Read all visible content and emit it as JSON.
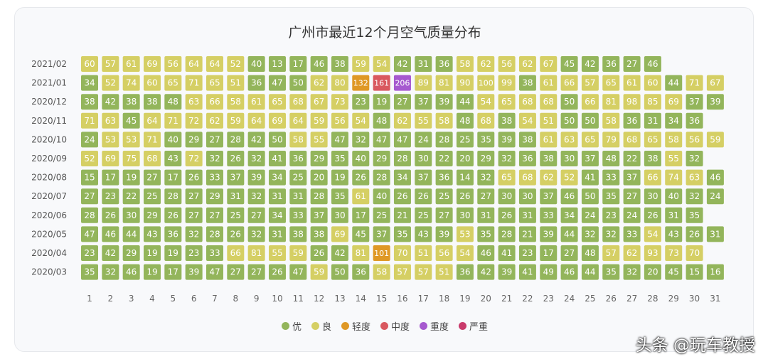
{
  "chart_data": {
    "type": "heatmap",
    "title": "广州市最近12个月空气质量分布",
    "x_days": [
      1,
      2,
      3,
      4,
      5,
      6,
      7,
      8,
      9,
      10,
      11,
      12,
      13,
      14,
      15,
      16,
      17,
      18,
      19,
      20,
      21,
      22,
      23,
      24,
      25,
      26,
      27,
      28,
      29,
      30,
      31
    ],
    "rows": [
      {
        "month": "2021/02",
        "values": [
          60,
          57,
          61,
          69,
          56,
          64,
          64,
          52,
          40,
          13,
          17,
          46,
          38,
          59,
          54,
          42,
          31,
          36,
          58,
          62,
          56,
          62,
          67,
          45,
          42,
          36,
          27,
          46
        ]
      },
      {
        "month": "2021/01",
        "values": [
          34,
          52,
          74,
          60,
          65,
          71,
          65,
          51,
          36,
          47,
          50,
          62,
          80,
          132,
          161,
          206,
          89,
          81,
          90,
          100,
          99,
          38,
          61,
          66,
          57,
          65,
          61,
          60,
          44,
          71,
          67
        ]
      },
      {
        "month": "2020/12",
        "values": [
          38,
          42,
          38,
          38,
          48,
          63,
          66,
          58,
          61,
          65,
          68,
          67,
          73,
          23,
          19,
          27,
          37,
          39,
          44,
          54,
          65,
          68,
          68,
          50,
          66,
          81,
          98,
          85,
          69,
          37,
          39
        ]
      },
      {
        "month": "2020/11",
        "values": [
          71,
          63,
          45,
          64,
          71,
          72,
          62,
          59,
          64,
          69,
          64,
          59,
          56,
          54,
          48,
          62,
          55,
          58,
          48,
          68,
          38,
          54,
          51,
          50,
          50,
          58,
          36,
          31,
          34,
          36
        ]
      },
      {
        "month": "2020/10",
        "values": [
          24,
          53,
          53,
          71,
          40,
          29,
          27,
          28,
          42,
          50,
          58,
          55,
          47,
          32,
          47,
          47,
          24,
          28,
          25,
          35,
          39,
          38,
          61,
          63,
          65,
          79,
          68,
          65,
          58,
          56,
          59
        ]
      },
      {
        "month": "2020/09",
        "values": [
          52,
          69,
          75,
          68,
          43,
          72,
          32,
          26,
          32,
          41,
          36,
          29,
          35,
          40,
          29,
          28,
          30,
          22,
          20,
          29,
          32,
          36,
          38,
          30,
          37,
          48,
          22,
          38,
          55,
          32
        ]
      },
      {
        "month": "2020/08",
        "values": [
          15,
          17,
          19,
          27,
          17,
          26,
          33,
          37,
          39,
          34,
          25,
          20,
          19,
          26,
          28,
          34,
          37,
          36,
          14,
          32,
          65,
          68,
          62,
          52,
          41,
          33,
          37,
          66,
          74,
          63,
          46
        ]
      },
      {
        "month": "2020/07",
        "values": [
          27,
          23,
          22,
          25,
          28,
          27,
          29,
          31,
          32,
          31,
          31,
          28,
          35,
          61,
          40,
          26,
          26,
          25,
          26,
          27,
          30,
          30,
          37,
          46,
          50,
          35,
          27,
          30,
          40,
          32,
          24
        ]
      },
      {
        "month": "2020/06",
        "values": [
          28,
          26,
          30,
          29,
          26,
          27,
          27,
          25,
          27,
          34,
          33,
          37,
          30,
          17,
          25,
          21,
          25,
          27,
          30,
          31,
          26,
          31,
          33,
          34,
          24,
          23,
          24,
          26,
          31,
          35
        ]
      },
      {
        "month": "2020/05",
        "values": [
          47,
          46,
          44,
          43,
          36,
          32,
          28,
          26,
          32,
          31,
          38,
          38,
          69,
          45,
          37,
          35,
          43,
          39,
          53,
          35,
          28,
          21,
          39,
          44,
          32,
          32,
          33,
          54,
          43,
          26,
          31
        ]
      },
      {
        "month": "2020/04",
        "values": [
          23,
          42,
          29,
          19,
          19,
          23,
          33,
          66,
          81,
          55,
          59,
          26,
          42,
          81,
          101,
          70,
          51,
          56,
          54,
          46,
          41,
          23,
          17,
          27,
          48,
          57,
          62,
          93,
          73,
          70
        ]
      },
      {
        "month": "2020/03",
        "values": [
          35,
          32,
          46,
          19,
          17,
          39,
          47,
          27,
          27,
          26,
          47,
          59,
          50,
          36,
          58,
          57,
          57,
          51,
          36,
          42,
          39,
          41,
          49,
          46,
          44,
          35,
          32,
          20,
          45,
          15,
          16
        ]
      }
    ],
    "legend": [
      {
        "label": "优",
        "color": "#93b55b",
        "min": 0,
        "max": 50
      },
      {
        "label": "良",
        "color": "#d5cf64",
        "min": 51,
        "max": 100
      },
      {
        "label": "轻度",
        "color": "#df9825",
        "min": 101,
        "max": 150
      },
      {
        "label": "中度",
        "color": "#d9585f",
        "min": 151,
        "max": 200
      },
      {
        "label": "重度",
        "color": "#a659cf",
        "min": 201,
        "max": 300
      },
      {
        "label": "严重",
        "color": "#c93a6b",
        "min": 301,
        "max": 500
      }
    ]
  },
  "watermark": "头条 @玩车教授"
}
